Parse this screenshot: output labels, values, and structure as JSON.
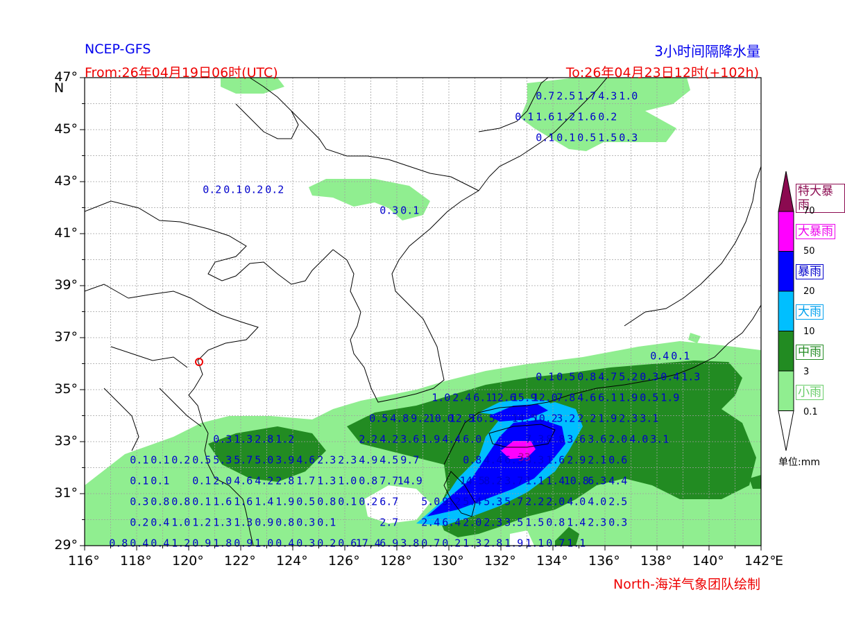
{
  "header": {
    "model": "NCEP-GFS",
    "title": "3小时间隔降水量",
    "from": "From:26年04月19日06时(UTC)",
    "to": "To:26年04月23日12时(+102h)",
    "credit": "North-海洋气象团队绘制"
  },
  "axes": {
    "lat_ticks": [
      "47°",
      "45°",
      "43°",
      "41°",
      "39°",
      "37°",
      "35°",
      "33°",
      "31°",
      "29°"
    ],
    "lat_values": [
      47,
      45,
      43,
      41,
      39,
      37,
      35,
      33,
      31,
      29
    ],
    "lat_unit": "N",
    "lon_ticks": [
      "116°",
      "118°",
      "120°",
      "122°",
      "124°",
      "126°",
      "128°",
      "130°",
      "132°",
      "134°",
      "136°",
      "138°",
      "140°",
      "142°"
    ],
    "lon_values": [
      116,
      118,
      120,
      122,
      124,
      126,
      128,
      130,
      132,
      134,
      136,
      138,
      140,
      142
    ],
    "lon_unit": "E"
  },
  "legend": {
    "unit": "单位:mm",
    "categories": [
      {
        "label": "特大暴雨",
        "color": "#8b0a50",
        "text_color": "#8b0a50"
      },
      {
        "label": "大暴雨",
        "color": "#ff00ff",
        "text_color": "#ee00ee"
      },
      {
        "label": "暴雨",
        "color": "#0000ff",
        "text_color": "#0000cc"
      },
      {
        "label": "大雨",
        "color": "#00bfff",
        "text_color": "#00a0ee"
      },
      {
        "label": "中雨",
        "color": "#228b22",
        "text_color": "#228b22"
      },
      {
        "label": "小雨",
        "color": "#90ee90",
        "text_color": "#66cc66"
      }
    ],
    "thresholds": [
      "70",
      "50",
      "20",
      "10",
      "3",
      "0.1"
    ]
  },
  "grid_values": [
    {
      "lon": 133.7,
      "lat": 46.3,
      "vals": [
        "0.7",
        "2.5",
        "1.7",
        "4.3",
        "1.0"
      ]
    },
    {
      "lon": 132.9,
      "lat": 45.5,
      "vals": [
        "0.1",
        "1.6",
        "1.2",
        "1.6",
        "0.2"
      ]
    },
    {
      "lon": 133.7,
      "lat": 44.7,
      "vals": [
        "0.1",
        "0.1",
        "0.5",
        "1.5",
        "0.3"
      ]
    },
    {
      "lon": 120.9,
      "lat": 42.7,
      "vals": [
        "0.2",
        "0.1",
        "0.2",
        "0.2"
      ]
    },
    {
      "lon": 127.7,
      "lat": 41.9,
      "vals": [
        "0.3",
        "0.1"
      ]
    },
    {
      "lon": 138.1,
      "lat": 36.3,
      "vals": [
        "0.4",
        "0.1"
      ]
    },
    {
      "lon": 133.7,
      "lat": 35.5,
      "vals": [
        "0.1",
        "0.5",
        "0.8",
        "4.7",
        "5.2",
        "0.3",
        "0.4",
        "1.3"
      ]
    },
    {
      "lon": 129.7,
      "lat": 34.7,
      "vals": [
        "1.0",
        "2.4",
        "6.1",
        "12.6",
        "15.9",
        "12.0",
        "7.8",
        "4.6",
        "6.1",
        "1.9",
        "0.5",
        "1.9"
      ]
    },
    {
      "lon": 127.3,
      "lat": 33.9,
      "vals": [
        "0.5",
        "4.8",
        "9.2",
        "10.0",
        "12.5",
        "16.5",
        "",
        "14.5",
        "10.2",
        "3.2",
        "2.2",
        "1.9",
        "2.3",
        "3.1"
      ]
    },
    {
      "lon": 121.3,
      "lat": 33.1,
      "vals": [
        "0.3",
        "1.3",
        "2.8",
        "1.2",
        "",
        "",
        "",
        "2.2",
        "4.2",
        "3.6",
        "1.9",
        "4.4",
        "6.0",
        "",
        "",
        "7.3",
        "8.8",
        "3.6",
        "3.6",
        "2.0",
        "4.0",
        "3.1"
      ]
    },
    {
      "lon": 118.1,
      "lat": 32.3,
      "vals": [
        "0.1",
        "0.1",
        "0.2",
        "0.5",
        "5.3",
        "5.7",
        "5.0",
        "3.9",
        "4.6",
        "2.3",
        "2.3",
        "4.9",
        "4.5",
        "9.7",
        "",
        "",
        "0.8",
        "4.4",
        "6.3",
        "3.3",
        "1.6",
        "2.9",
        "2.1",
        "0.6"
      ]
    },
    {
      "lon": 118.1,
      "lat": 31.5,
      "vals": [
        "0.1",
        "0.1",
        "",
        "0.1",
        "2.0",
        "4.6",
        "4.2",
        "2.8",
        "1.7",
        "1.3",
        "1.0",
        "0.8",
        "7.7",
        "14.9",
        "",
        "",
        "14.5",
        "8.2",
        "3.7",
        "1.1",
        "1.4",
        "10.8",
        "6.3",
        "4.4"
      ]
    },
    {
      "lon": 118.1,
      "lat": 30.7,
      "vals": [
        "0.3",
        "0.8",
        "0.8",
        "0.1",
        "1.6",
        "1.6",
        "1.4",
        "1.9",
        "0.5",
        "0.8",
        "0.1",
        "0.2",
        "6.7",
        "",
        "5.0",
        "9.2",
        "5.4",
        "5.3",
        "5.7",
        "2.2",
        "2.0",
        "4.0",
        "4.0",
        "2.5"
      ]
    },
    {
      "lon": 118.1,
      "lat": 29.9,
      "vals": [
        "0.2",
        "0.4",
        "1.0",
        "1.2",
        "1.3",
        "1.3",
        "0.9",
        "0.8",
        "0.3",
        "0.1",
        "",
        "",
        "2.7",
        "",
        "2.4",
        "6.4",
        "2.0",
        "2.3",
        "3.5",
        "1.5",
        "0.8",
        "1.4",
        "2.3",
        "0.3"
      ]
    },
    {
      "lon": 117.3,
      "lat": 29.1,
      "vals": [
        "0.8",
        "0.4",
        "0.4",
        "1.2",
        "0.9",
        "1.8",
        "0.9",
        "1.0",
        "0.4",
        "0.3",
        "0.2",
        "0.6",
        "17.4",
        "6.9",
        "3.8",
        "0.7",
        "0.2",
        "1.3",
        "2.8",
        "1.9",
        "1.1",
        "0.7",
        "1.1"
      ]
    },
    {
      "lon": 132.9,
      "lat": 32.4,
      "vals": [
        "33"
      ]
    }
  ]
}
